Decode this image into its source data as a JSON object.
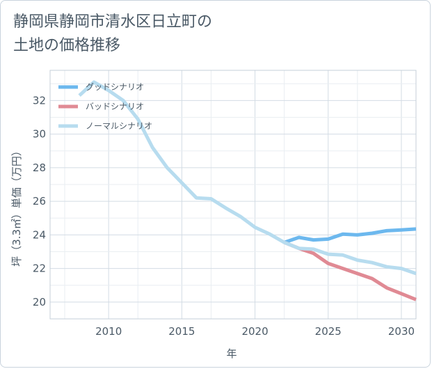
{
  "chart_data": {
    "type": "line",
    "title": "静岡県静岡市清水区日立町の\n土地の価格推移",
    "xlabel": "年",
    "ylabel": "坪（3.3㎡）単価（万円）",
    "xlim": [
      2006,
      2031
    ],
    "ylim": [
      19,
      33.8
    ],
    "x_ticks": [
      2010,
      2015,
      2020,
      2025,
      2030
    ],
    "y_ticks": [
      20,
      22,
      24,
      26,
      28,
      30,
      32
    ],
    "grid": true,
    "legend_position": "top-left",
    "series": [
      {
        "name": "グッドシナリオ",
        "color": "#6cb8ee",
        "x": [
          2022,
          2023,
          2024,
          2025,
          2026,
          2027,
          2028,
          2029,
          2030,
          2031
        ],
        "values": [
          23.55,
          23.85,
          23.7,
          23.75,
          24.05,
          24.0,
          24.1,
          24.25,
          24.3,
          24.35
        ]
      },
      {
        "name": "バッドシナリオ",
        "color": "#e08a94",
        "x": [
          2022,
          2023,
          2024,
          2025,
          2026,
          2027,
          2028,
          2029,
          2030,
          2031
        ],
        "values": [
          23.55,
          23.2,
          22.9,
          22.3,
          22.0,
          21.7,
          21.4,
          20.85,
          20.5,
          20.15
        ]
      },
      {
        "name": "ノーマルシナリオ",
        "color": "#b7dcef",
        "x": [
          2008,
          2009,
          2010,
          2011,
          2012,
          2013,
          2014,
          2015,
          2016,
          2017,
          2018,
          2019,
          2020,
          2021,
          2022,
          2023,
          2024,
          2025,
          2026,
          2027,
          2028,
          2029,
          2030,
          2031
        ],
        "values": [
          32.3,
          33.1,
          32.6,
          32.0,
          30.9,
          29.2,
          28.0,
          27.1,
          26.2,
          26.15,
          25.6,
          25.1,
          24.45,
          24.05,
          23.55,
          23.2,
          23.15,
          22.85,
          22.8,
          22.5,
          22.35,
          22.1,
          22.0,
          21.7
        ]
      }
    ]
  }
}
